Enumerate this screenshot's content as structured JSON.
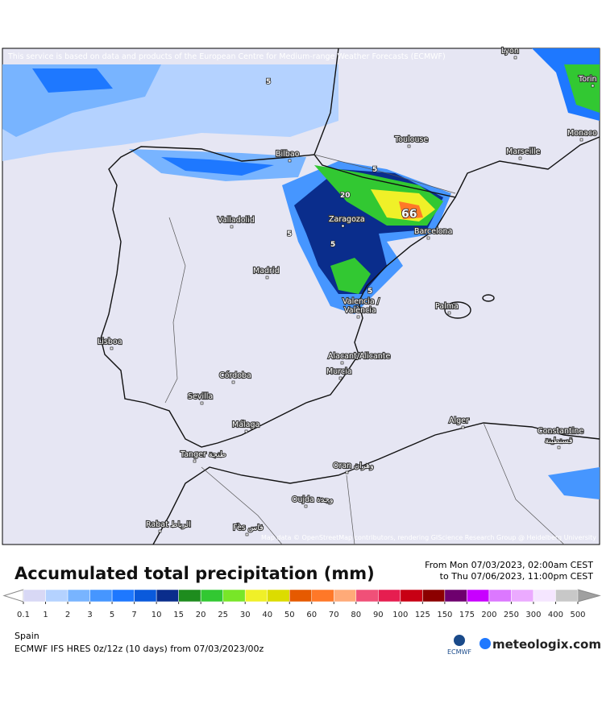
{
  "map": {
    "banner": "This service is based on data and products of the European Centre for Medium-range Weather Forecasts (ECMWF)",
    "attribution": "Map data © OpenStreetMap contributors, rendering GIScience Research Group @ Heidelberg University",
    "cities": [
      "Lyon",
      "Torin",
      "Monaco",
      "Toulouse",
      "Marseille",
      "Bilbao",
      "Valladolid",
      "Zaragoza",
      "Barcelona",
      "Madrid",
      "Valencia /",
      "València",
      "Palma",
      "Lisboa",
      "Alacant/Alicante",
      "Murcia",
      "Córdoba",
      "Sevilla",
      "Málaga",
      "Alger",
      "Constantine",
      "قسنطينة",
      "Tanger طنجة",
      "Oran وهران",
      "Oujda وجدة",
      "Rabat الرباط",
      "Fès فاس"
    ],
    "contour_labels": [
      "66",
      "20",
      "5",
      "5",
      "5",
      "5",
      "5"
    ]
  },
  "legend": {
    "title": "Accumulated total precipitation (mm)",
    "from": "From Mon 07/03/2023, 02:00am CEST",
    "to": "to Thu 07/06/2023, 11:00pm CEST",
    "ticks": [
      0.1,
      1,
      2,
      3,
      5,
      7,
      10,
      15,
      20,
      25,
      30,
      40,
      50,
      60,
      70,
      80,
      90,
      100,
      125,
      150,
      175,
      200,
      250,
      300,
      400,
      500
    ],
    "colors": [
      "#d8d8f5",
      "#b4d2ff",
      "#78b4ff",
      "#4696ff",
      "#1e78ff",
      "#0a5adc",
      "#0a2d8c",
      "#1e8c1e",
      "#32c832",
      "#78e628",
      "#f0f028",
      "#dcdc00",
      "#e65a00",
      "#ff7828",
      "#ffaa78",
      "#f05078",
      "#e61e50",
      "#c80014",
      "#8c0000",
      "#6e006e",
      "#c800ff",
      "#dc78ff",
      "#ebaaff",
      "#f5e6ff",
      "#c8c8c8"
    ],
    "under_color": "#ffffff",
    "over_color": "#a0a0a0"
  },
  "footer": {
    "region": "Spain",
    "model": "ECMWF IFS HRES 0z/12z (10 days)  from  07/03/2023/00z",
    "ecmwf": "ECMWF",
    "brand": "meteologix.com"
  }
}
